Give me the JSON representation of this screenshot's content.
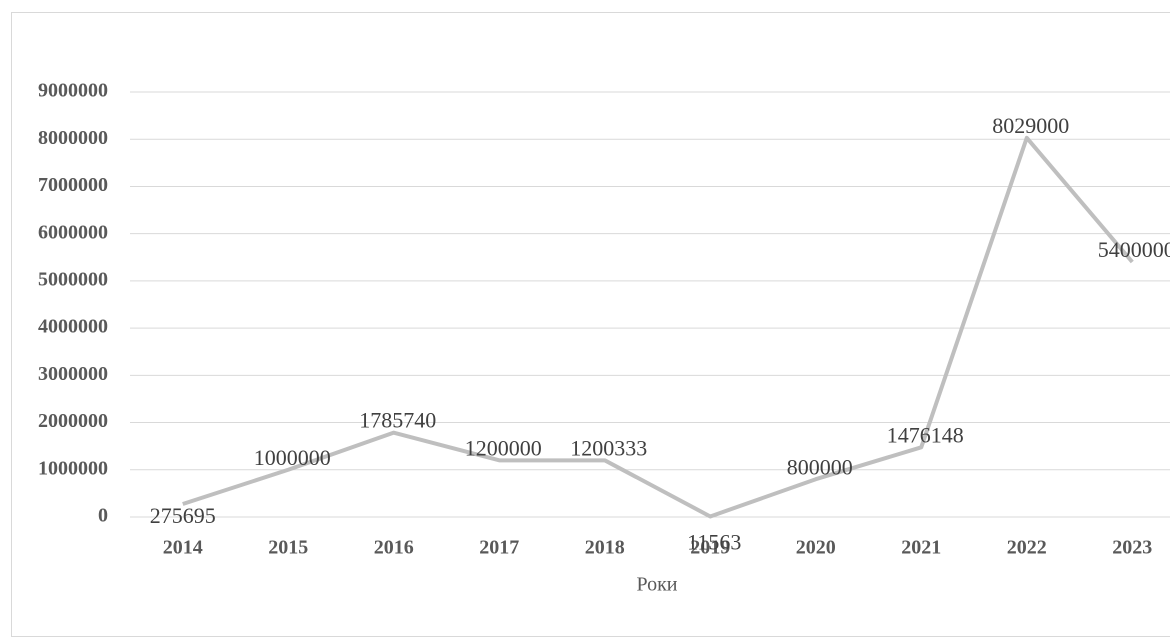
{
  "chart_data": {
    "type": "line",
    "x_label": "Роки",
    "categories": [
      "2014",
      "2015",
      "2016",
      "2017",
      "2018",
      "2019",
      "2020",
      "2021",
      "2022",
      "2023"
    ],
    "values": [
      275695,
      1000000,
      1785740,
      1200000,
      1200333,
      11563,
      800000,
      1476148,
      8029000,
      5400000
    ],
    "color": "#bfbfbf",
    "ylim": [
      0,
      9000000
    ],
    "yticks": [
      0,
      1000000,
      2000000,
      3000000,
      4000000,
      5000000,
      6000000,
      7000000,
      8000000,
      9000000
    ],
    "grid": true
  }
}
